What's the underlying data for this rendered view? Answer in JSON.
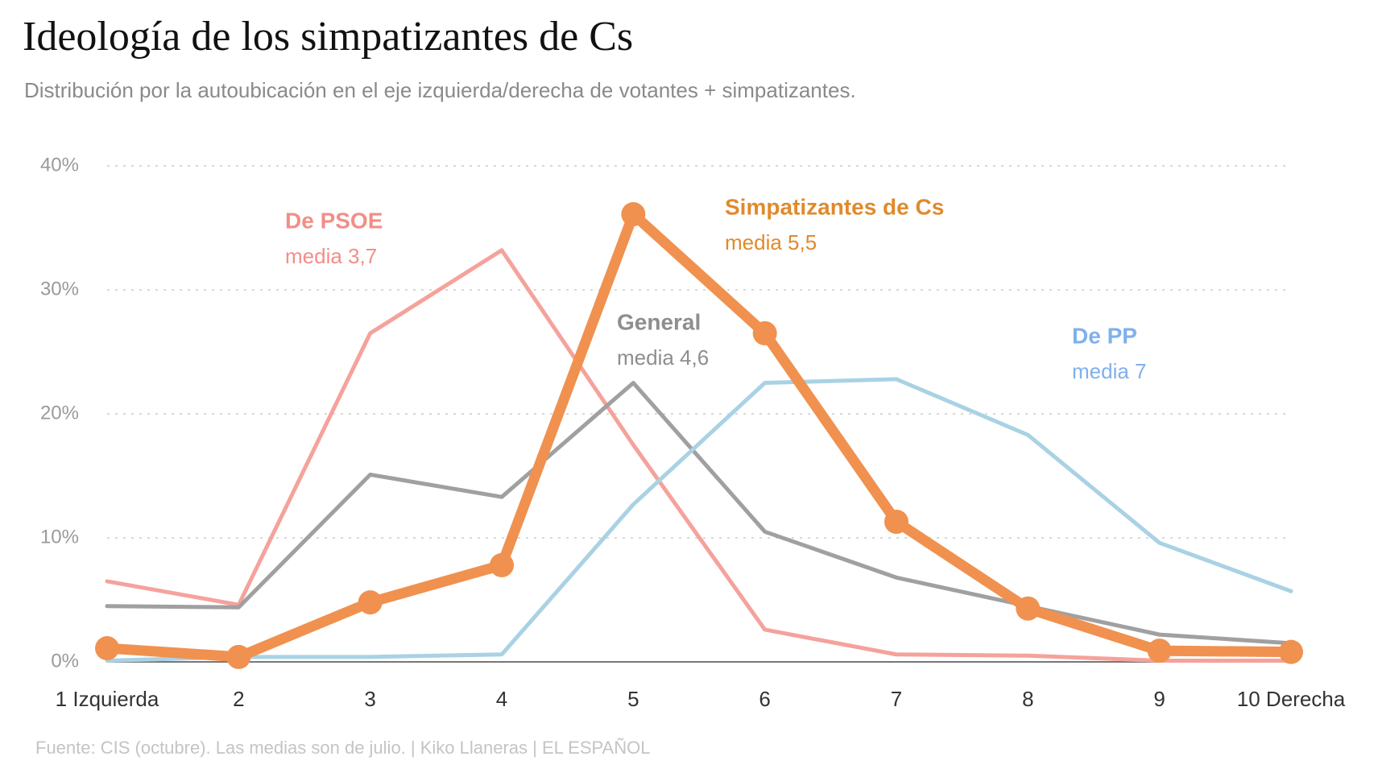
{
  "chart_data": {
    "type": "line",
    "title": "Ideología de los simpatizantes de Cs",
    "subtitle": "Distribución por la autoubicación en el eje izquierda/derecha de votantes + simpatizantes.",
    "source": "Fuente: CIS (octubre). Las medias son de julio.  |  Kiko Llaneras  |  EL ESPAÑOL",
    "categories": [
      "1 Izquierda",
      "2",
      "3",
      "4",
      "5",
      "6",
      "7",
      "8",
      "9",
      "10 Derecha"
    ],
    "ylim": [
      0,
      40
    ],
    "yticks": [
      {
        "value": 0,
        "label": "0%"
      },
      {
        "value": 10,
        "label": "10%"
      },
      {
        "value": 20,
        "label": "20%"
      },
      {
        "value": 30,
        "label": "30%"
      },
      {
        "value": 40,
        "label": "40%"
      }
    ],
    "grid": true,
    "series": [
      {
        "name": "De PSOE",
        "annotation": "media 3,7",
        "color": "#f5a29c",
        "label_color": "#f28e87",
        "values": [
          6.5,
          4.6,
          26.5,
          33.2,
          17.5,
          2.6,
          0.6,
          0.5,
          0.1,
          0.1
        ]
      },
      {
        "name": "General",
        "annotation": "media 4,6",
        "color": "#a0a0a0",
        "label_color": "#8e8e8e",
        "values": [
          4.5,
          4.4,
          15.1,
          13.3,
          22.5,
          10.5,
          6.8,
          4.5,
          2.2,
          1.5
        ]
      },
      {
        "name": "De PP",
        "annotation": "media 7",
        "color": "#a9d2e4",
        "label_color": "#7fb0ec",
        "values": [
          0.1,
          0.4,
          0.4,
          0.6,
          12.7,
          22.5,
          22.8,
          18.3,
          9.6,
          5.7
        ]
      },
      {
        "name": "Simpatizantes de Cs",
        "annotation": "media 5,5",
        "color": "#f0914f",
        "label_color": "#e08a2c",
        "markers": true,
        "values": [
          1.1,
          0.4,
          4.8,
          7.8,
          36.1,
          26.5,
          11.3,
          4.3,
          0.9,
          0.8
        ]
      }
    ]
  }
}
